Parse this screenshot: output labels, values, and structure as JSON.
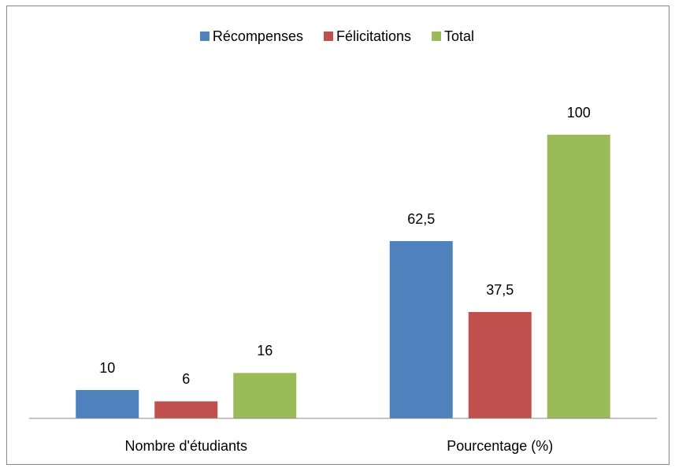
{
  "chart_data": {
    "type": "bar",
    "categories": [
      "Nombre d'étudiants",
      "Pourcentage (%)"
    ],
    "series": [
      {
        "name": "Récompenses",
        "color": "#4f81bd",
        "values": [
          10,
          62.5
        ],
        "value_labels": [
          "10",
          "62,5"
        ]
      },
      {
        "name": "Félicitations",
        "color": "#c0504d",
        "values": [
          6,
          37.5
        ],
        "value_labels": [
          "6",
          "37,5"
        ]
      },
      {
        "name": "Total",
        "color": "#9bbb59",
        "values": [
          16,
          100
        ],
        "value_labels": [
          "16",
          "100"
        ]
      }
    ],
    "ylim": [
      0,
      100
    ],
    "legend": "top"
  }
}
